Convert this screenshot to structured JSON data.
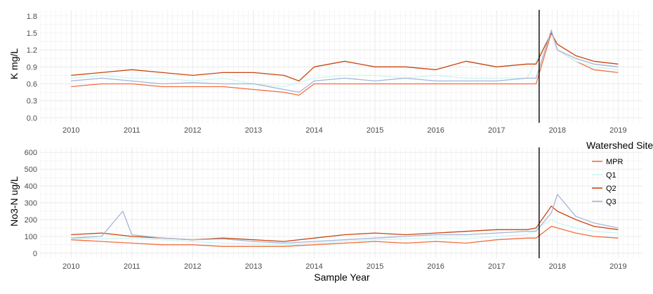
{
  "chart_data": {
    "type": "line",
    "xlabel": "Sample Year",
    "x_range": [
      2009.5,
      2019.4
    ],
    "x_ticks": [
      "2010",
      "2011",
      "2012",
      "2013",
      "2014",
      "2015",
      "2016",
      "2017",
      "2018",
      "2019"
    ],
    "vline_x": 2017.7,
    "legend": {
      "title": "Watershed Site",
      "placement": "right",
      "entries": [
        "MPR",
        "Q1",
        "Q2",
        "Q3"
      ]
    },
    "colors": {
      "MPR": "#f46d3e",
      "Q1": "#ccf5f2",
      "Q2": "#c94510",
      "Q3": "#a7b4d6",
      "vline": "#000000",
      "grid": "#ebebeb"
    },
    "grid": true,
    "panels": [
      {
        "ylabel": "K mg/L",
        "ylim": [
          -0.09,
          1.91
        ],
        "y_ticks": [
          0.0,
          0.3,
          0.6,
          0.9,
          1.2,
          1.5,
          1.8
        ],
        "y_tick_labels": [
          "0.0",
          "0.3",
          "0.6",
          "0.9",
          "1.2",
          "1.5",
          "1.8"
        ],
        "series": [
          {
            "name": "MPR",
            "x": [
              2010.0,
              2010.5,
              2011.0,
              2011.5,
              2012.0,
              2012.5,
              2013.0,
              2013.5,
              2013.75,
              2014.0,
              2014.5,
              2015.0,
              2015.5,
              2016.0,
              2016.5,
              2017.0,
              2017.5,
              2017.65,
              2017.9,
              2018.0,
              2018.3,
              2018.6,
              2019.0
            ],
            "values": [
              0.55,
              0.6,
              0.6,
              0.55,
              0.55,
              0.55,
              0.5,
              0.45,
              0.4,
              0.6,
              0.6,
              0.6,
              0.6,
              0.6,
              0.6,
              0.6,
              0.6,
              0.6,
              1.5,
              1.2,
              1.0,
              0.85,
              0.8
            ]
          },
          {
            "name": "Q1",
            "x": [
              2010.0,
              2010.5,
              2011.0,
              2011.5,
              2012.0,
              2012.5,
              2013.0,
              2013.5,
              2014.0,
              2014.5,
              2015.0,
              2015.5,
              2016.0,
              2016.5,
              2017.0,
              2017.5,
              2017.9,
              2018.0,
              2018.3,
              2018.6,
              2019.0
            ],
            "values": [
              0.7,
              0.75,
              0.7,
              0.7,
              0.65,
              0.7,
              0.6,
              0.55,
              0.7,
              0.75,
              0.75,
              0.7,
              0.75,
              0.7,
              0.7,
              0.7,
              1.5,
              1.2,
              1.0,
              0.9,
              0.85
            ]
          },
          {
            "name": "Q2",
            "x": [
              2010.0,
              2010.5,
              2011.0,
              2011.5,
              2012.0,
              2012.5,
              2013.0,
              2013.5,
              2013.75,
              2014.0,
              2014.5,
              2015.0,
              2015.5,
              2016.0,
              2016.5,
              2017.0,
              2017.5,
              2017.65,
              2017.9,
              2018.0,
              2018.3,
              2018.6,
              2019.0
            ],
            "values": [
              0.75,
              0.8,
              0.85,
              0.8,
              0.75,
              0.8,
              0.8,
              0.75,
              0.65,
              0.9,
              1.0,
              0.9,
              0.9,
              0.85,
              1.0,
              0.9,
              0.95,
              0.95,
              1.5,
              1.3,
              1.1,
              1.0,
              0.95
            ]
          },
          {
            "name": "Q3",
            "x": [
              2010.0,
              2010.5,
              2011.0,
              2011.5,
              2012.0,
              2012.5,
              2013.0,
              2013.5,
              2013.75,
              2014.0,
              2014.5,
              2015.0,
              2015.5,
              2016.0,
              2016.5,
              2017.0,
              2017.5,
              2017.65,
              2017.9,
              2018.0,
              2018.3,
              2018.6,
              2019.0
            ],
            "values": [
              0.65,
              0.7,
              0.65,
              0.6,
              0.62,
              0.6,
              0.6,
              0.5,
              0.45,
              0.65,
              0.7,
              0.65,
              0.7,
              0.65,
              0.65,
              0.65,
              0.7,
              0.7,
              1.55,
              1.2,
              1.05,
              0.95,
              0.9
            ]
          }
        ]
      },
      {
        "ylabel": "No3-N ug/L",
        "ylim": [
          -30,
          630
        ],
        "y_ticks": [
          0,
          100,
          200,
          300,
          400,
          500,
          600
        ],
        "y_tick_labels": [
          "0",
          "100",
          "200",
          "300",
          "400",
          "500",
          "600"
        ],
        "series": [
          {
            "name": "MPR",
            "x": [
              2010.0,
              2010.5,
              2011.0,
              2011.5,
              2012.0,
              2012.5,
              2013.0,
              2013.5,
              2014.0,
              2014.5,
              2015.0,
              2015.5,
              2016.0,
              2016.5,
              2017.0,
              2017.5,
              2017.65,
              2017.9,
              2018.0,
              2018.3,
              2018.6,
              2019.0
            ],
            "values": [
              80,
              70,
              60,
              50,
              50,
              40,
              40,
              40,
              50,
              60,
              70,
              60,
              70,
              60,
              80,
              90,
              90,
              160,
              150,
              120,
              100,
              90
            ]
          },
          {
            "name": "Q1",
            "x": [
              2010.0,
              2010.5,
              2011.0,
              2011.5,
              2012.0,
              2012.5,
              2013.0,
              2013.5,
              2014.0,
              2014.5,
              2015.0,
              2015.5,
              2016.0,
              2016.5,
              2017.0,
              2017.5,
              2017.9,
              2018.0,
              2018.3,
              2018.6,
              2019.0
            ],
            "values": [
              90,
              85,
              90,
              80,
              70,
              60,
              55,
              50,
              60,
              70,
              80,
              85,
              90,
              85,
              100,
              110,
              200,
              180,
              150,
              130,
              120
            ]
          },
          {
            "name": "Q2",
            "x": [
              2010.0,
              2010.5,
              2011.0,
              2011.5,
              2012.0,
              2012.5,
              2013.0,
              2013.5,
              2014.0,
              2014.5,
              2015.0,
              2015.5,
              2016.0,
              2016.5,
              2017.0,
              2017.5,
              2017.65,
              2017.9,
              2018.0,
              2018.3,
              2018.6,
              2019.0
            ],
            "values": [
              110,
              120,
              100,
              90,
              80,
              90,
              80,
              70,
              90,
              110,
              120,
              110,
              120,
              130,
              140,
              140,
              150,
              280,
              250,
              200,
              160,
              140
            ]
          },
          {
            "name": "Q3",
            "x": [
              2010.0,
              2010.5,
              2010.85,
              2011.0,
              2011.5,
              2012.0,
              2012.5,
              2013.0,
              2013.5,
              2014.0,
              2014.5,
              2015.0,
              2015.5,
              2016.0,
              2016.5,
              2017.0,
              2017.5,
              2017.65,
              2017.9,
              2018.0,
              2018.3,
              2018.6,
              2019.0
            ],
            "values": [
              90,
              100,
              250,
              110,
              90,
              80,
              85,
              70,
              60,
              70,
              80,
              90,
              100,
              110,
              110,
              120,
              130,
              130,
              240,
              350,
              220,
              180,
              150
            ]
          }
        ]
      }
    ]
  }
}
